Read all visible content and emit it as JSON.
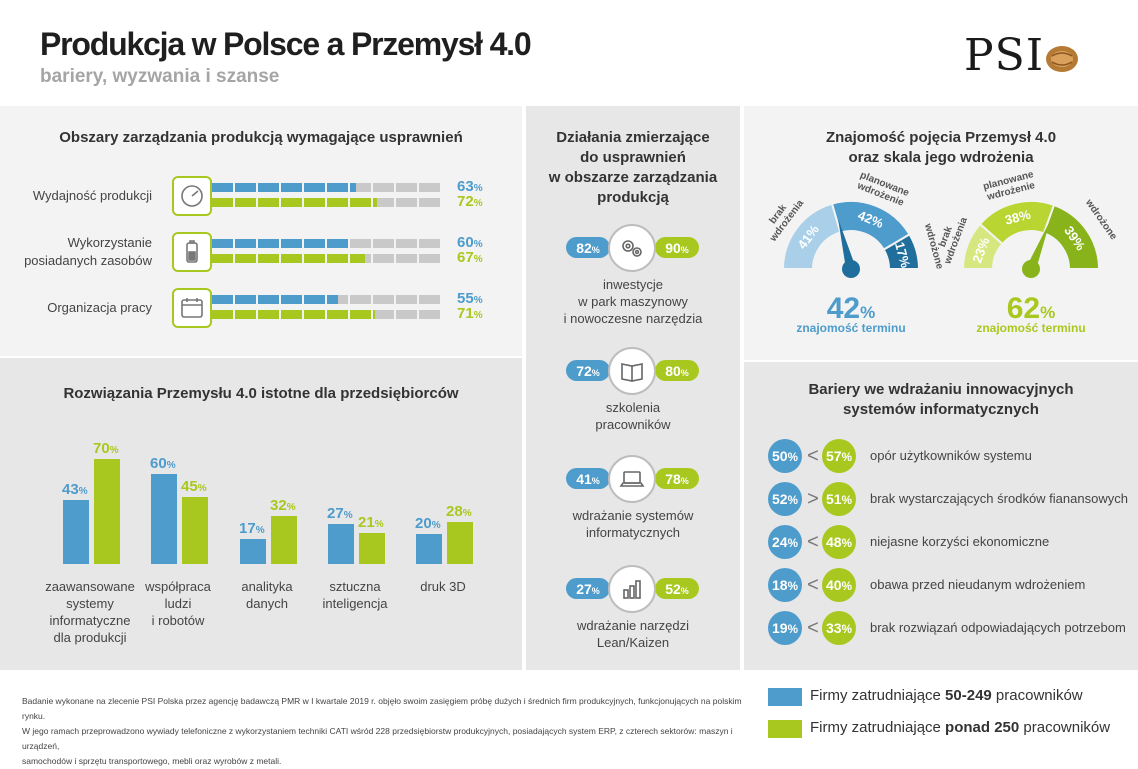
{
  "header": {
    "title": "Produkcja w Polsce a Przemysł 4.0",
    "subtitle": "bariery, wyzwania i szanse",
    "logo_text": "PSI"
  },
  "colors": {
    "blue": "#4d9ccc",
    "green": "#a9c81f",
    "gauge1_light": "#a9d0e8",
    "gauge1_mid": "#4d9ccc",
    "gauge1_dark": "#1f6e9c",
    "gauge2_light": "#d7e77f",
    "gauge2_mid": "#b8d531",
    "gauge2_dark": "#88b31a"
  },
  "legend": {
    "blue_prefix": "Firmy zatrudniające ",
    "blue_bold": "50-249",
    "blue_suffix": " pracowników",
    "green_prefix": "Firmy zatrudniające ",
    "green_bold": "ponad 250",
    "green_suffix": " pracowników"
  },
  "footnote": {
    "line1": "Badanie wykonane na zlecenie PSI Polska przez agencję badawczą PMR w I kwartale 2019 r. objęło swoim zasięgiem próbę dużych i średnich firm produkcyjnych, funkcjonujących na polskim rynku.",
    "line2": "W jego ramach przeprowadzono wywiady telefoniczne z wykorzystaniem techniki CATI wśród 228 przedsiębiorstw produkcyjnych, posiadających system ERP, z czterech sektorów: maszyn i urządzeń,",
    "line3": "samochodów i sprzętu transportowego, mebli oraz wyrobów z metali."
  },
  "chart_data": [
    {
      "type": "bar",
      "orientation": "horizontal",
      "title": "Obszary zarządzania produkcją wymagające usprawnień",
      "categories": [
        "Wydajność produkcji",
        "Wykorzystanie posiadanych zasobów",
        "Organizacja pracy"
      ],
      "category_lines": [
        [
          "Wydajność produkcji"
        ],
        [
          "Wykorzystanie",
          "posiadanych zasobów"
        ],
        [
          "Organizacja pracy"
        ]
      ],
      "icons": [
        "gauge-icon",
        "battery-icon",
        "calendar-icon"
      ],
      "series": [
        {
          "name": "Firmy zatrudniające 50-249 pracowników",
          "values": [
            63,
            60,
            55
          ]
        },
        {
          "name": "Firmy zatrudniające ponad 250 pracowników",
          "values": [
            72,
            67,
            71
          ]
        }
      ],
      "unit": "%",
      "xlim": [
        0,
        100
      ]
    },
    {
      "type": "bar",
      "title": "Rozwiązania Przemysłu 4.0 istotne dla przedsiębiorców",
      "categories": [
        "zaawansowane systemy informatyczne dla produkcji",
        "współpraca ludzi i robotów",
        "analityka danych",
        "sztuczna inteligencja",
        "druk 3D"
      ],
      "category_lines": [
        [
          "zaawansowane",
          "systemy",
          "informatyczne",
          "dla produkcji"
        ],
        [
          "współpraca",
          "ludzi",
          "i robotów"
        ],
        [
          "analityka",
          "danych"
        ],
        [
          "sztuczna",
          "inteligencja"
        ],
        [
          "druk 3D"
        ]
      ],
      "series": [
        {
          "name": "Firmy zatrudniające 50-249 pracowników",
          "values": [
            43,
            60,
            17,
            27,
            20
          ]
        },
        {
          "name": "Firmy zatrudniające ponad 250 pracowników",
          "values": [
            70,
            45,
            32,
            21,
            28
          ]
        }
      ],
      "unit": "%",
      "ylim": [
        0,
        100
      ]
    },
    {
      "type": "table",
      "title_lines": [
        "Działania zmierzające",
        "do usprawnień",
        "w obszarze zarządzania",
        "produkcją"
      ],
      "rows": [
        {
          "icon": "gears-icon",
          "label_lines": [
            "inwestycje",
            "w park maszynowy",
            "i nowoczesne narzędzia"
          ],
          "blue": 82,
          "green": 90
        },
        {
          "icon": "book-icon",
          "label_lines": [
            "szkolenia",
            "pracowników"
          ],
          "blue": 72,
          "green": 80
        },
        {
          "icon": "laptop-icon",
          "label_lines": [
            "wdrażanie systemów",
            "informatycznych"
          ],
          "blue": 41,
          "green": 78
        },
        {
          "icon": "chart-icon",
          "label_lines": [
            "wdrażanie narzędzi",
            "Lean/Kaizen"
          ],
          "blue": 27,
          "green": 52
        }
      ],
      "unit": "%"
    },
    {
      "type": "pie",
      "variant": "gauge",
      "title_lines": [
        "Znajomość pojęcia Przemysł 4.0",
        "oraz skala jego wdrożenia"
      ],
      "gauges": [
        {
          "series": "Firmy zatrudniające 50-249 pracowników",
          "segments": [
            {
              "label_lines": [
                "brak",
                "wdrożenia"
              ],
              "value": 41
            },
            {
              "label_lines": [
                "planowane",
                "wdrożenie"
              ],
              "value": 42
            },
            {
              "label_lines": [
                "wdrożone"
              ],
              "value": 17
            }
          ],
          "total": 42,
          "total_label": "znajomość terminu"
        },
        {
          "series": "Firmy zatrudniające ponad 250 pracowników",
          "segments": [
            {
              "label_lines": [
                "brak",
                "wdrożenia"
              ],
              "value": 23
            },
            {
              "label_lines": [
                "planowane",
                "wdrożenie"
              ],
              "value": 38
            },
            {
              "label_lines": [
                "wdrożone"
              ],
              "value": 39
            }
          ],
          "total": 62,
          "total_label": "znajomość terminu"
        }
      ],
      "unit": "%"
    },
    {
      "type": "table",
      "title_lines": [
        "Bariery we wdrażaniu innowacyjnych",
        "systemów informatycznych"
      ],
      "rows": [
        {
          "blue": 50,
          "green": 57,
          "comparator": "<",
          "label": "opór użytkowników systemu"
        },
        {
          "blue": 52,
          "green": 51,
          "comparator": ">",
          "label": "brak wystarczających środków fianansowych"
        },
        {
          "blue": 24,
          "green": 48,
          "comparator": "<",
          "label": "niejasne korzyści ekonomiczne"
        },
        {
          "blue": 18,
          "green": 40,
          "comparator": "<",
          "label": "obawa przed nieudanym wdrożeniem"
        },
        {
          "blue": 19,
          "green": 33,
          "comparator": "<",
          "label": "brak rozwiązań odpowiadających potrzebom"
        }
      ],
      "unit": "%"
    }
  ]
}
